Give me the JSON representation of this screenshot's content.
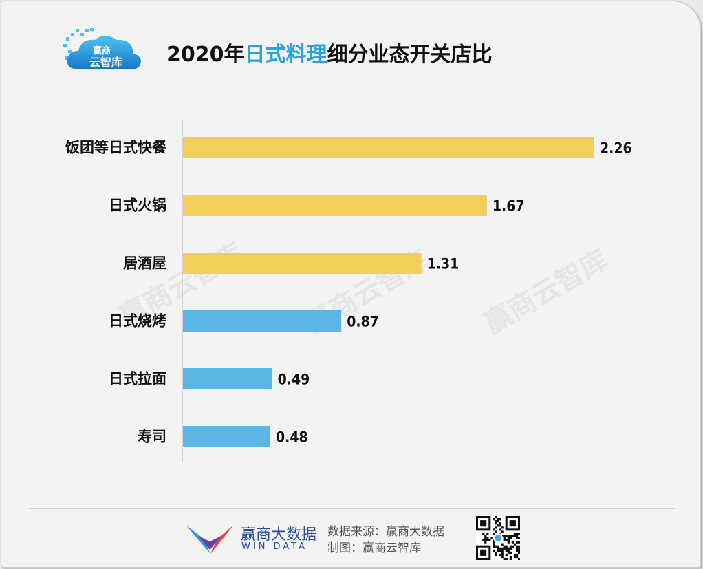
{
  "header": {
    "logo_text_top": "赢商",
    "logo_text_bottom": "云智库",
    "title_prefix": "2020年",
    "title_highlight": "日式料理",
    "title_suffix": "细分业态开关店比"
  },
  "chart_data": {
    "type": "bar",
    "orientation": "horizontal",
    "categories": [
      "饭团等日式快餐",
      "日式火锅",
      "居酒屋",
      "日式烧烤",
      "日式拉面",
      "寿司"
    ],
    "values": [
      2.26,
      1.67,
      1.31,
      0.87,
      0.49,
      0.48
    ],
    "value_labels": [
      "2.26",
      "1.67",
      "1.31",
      "0.87",
      "0.49",
      "0.48"
    ],
    "bar_colors": [
      "#f2cf5b",
      "#f2cf5b",
      "#f2cf5b",
      "#5ab6e4",
      "#5ab6e4",
      "#5ab6e4"
    ],
    "xlim": [
      0,
      2.26
    ],
    "grid": false,
    "legend": "none"
  },
  "watermark": "赢商云智库",
  "footer": {
    "brand_cn": "赢商大数据",
    "brand_en": "WIN DATA",
    "source_line": "数据来源：赢商大数据",
    "made_line": "制图：赢商云智库"
  },
  "colors": {
    "highlight": "#2aa3dc",
    "yellow_bar": "#f2cf5b",
    "blue_bar": "#5ab6e4"
  }
}
